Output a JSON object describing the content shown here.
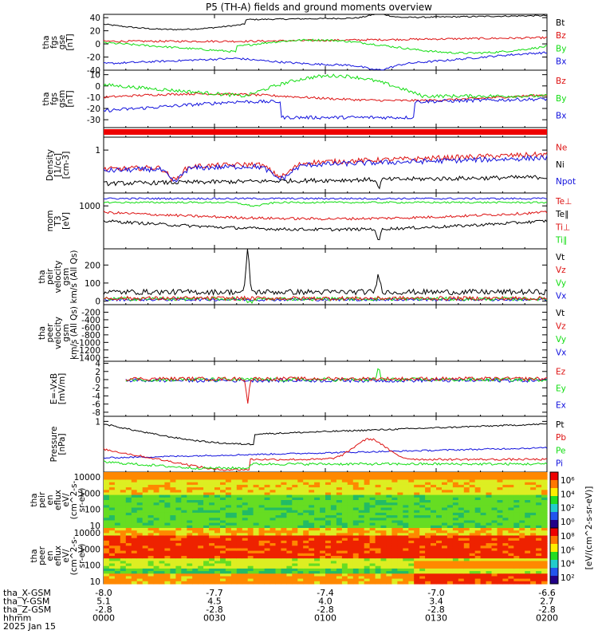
{
  "title": "P5 (TH-A) fields and ground moments overview",
  "colors": {
    "black": "#000000",
    "red": "#dd1111",
    "green": "#11dd11",
    "blue": "#1111dd"
  },
  "chart_data": {
    "type": "line",
    "x_range": [
      "0000",
      "0200"
    ],
    "panels": [
      {
        "id": "fgs-gse",
        "ylabel": [
          "tha",
          "fgs",
          "gse",
          "[nT]"
        ],
        "ylim": [
          -40,
          45
        ],
        "yticks": [
          "40",
          "20",
          "0",
          "-20",
          "-40"
        ],
        "ytick_values": [
          40,
          20,
          0,
          -20,
          -40
        ],
        "legend": [
          "Bt",
          "Bz",
          "By",
          "Bx"
        ],
        "legend_colors": [
          "black",
          "red",
          "green",
          "blue"
        ]
      },
      {
        "id": "fgs-gsm",
        "ylabel": [
          "tha",
          "fgs",
          "gsm",
          "[nT]"
        ],
        "ylim": [
          -37,
          14
        ],
        "yticks": [
          "10",
          "0",
          "-10",
          "-20",
          "-30"
        ],
        "ytick_values": [
          10,
          0,
          -10,
          -20,
          -30
        ],
        "legend": [
          "Bz",
          "By",
          "Bx"
        ],
        "legend_colors": [
          "red",
          "green",
          "blue"
        ]
      },
      {
        "id": "density",
        "ylabel": [
          "Density",
          "[1/cc]",
          "[cm-3]"
        ],
        "ylim": [
          0,
          1.3
        ],
        "yticks": [
          "1"
        ],
        "ytick_values": [
          1
        ],
        "legend": [
          "Ne",
          "Ni",
          "Npot"
        ],
        "legend_colors": [
          "red",
          "black",
          "blue"
        ]
      },
      {
        "id": "temperature",
        "ylabel": [
          "mom",
          "T3",
          "[eV]"
        ],
        "ylim": [
          0,
          1300
        ],
        "yticks": [
          "1000"
        ],
        "ytick_values": [
          1000
        ],
        "legend": [
          "Te⊥",
          "Te∥",
          "Ti⊥",
          "Ti∥"
        ],
        "legend_colors": [
          "red",
          "black",
          "red",
          "green"
        ]
      },
      {
        "id": "peir-velocity",
        "ylabel": [
          "tha",
          "peir",
          "velocity",
          "gsm",
          "km/s (All Qs)"
        ],
        "ylim": [
          -20,
          290
        ],
        "yticks": [
          "200",
          "100",
          "0"
        ],
        "ytick_values": [
          200,
          100,
          0
        ],
        "legend": [
          "Vt",
          "Vz",
          "Vy",
          "Vx"
        ],
        "legend_colors": [
          "black",
          "red",
          "green",
          "blue"
        ]
      },
      {
        "id": "peer-velocity",
        "ylabel": [
          "tha",
          "peer",
          "velocity",
          "gsm",
          "km/s (All Qs)"
        ],
        "ylim": [
          -1500,
          0
        ],
        "yticks": [
          "-200",
          "-400",
          "-600",
          "-800",
          "-1000",
          "-1200",
          "-1400"
        ],
        "ytick_values": [
          -200,
          -400,
          -600,
          -800,
          -1000,
          -1200,
          -1400
        ],
        "legend": [
          "Vt",
          "Vz",
          "Vy",
          "Vx"
        ],
        "legend_colors": [
          "black",
          "red",
          "green",
          "blue"
        ]
      },
      {
        "id": "efield",
        "ylabel": [
          "E=-VxB",
          "[mV/m]"
        ],
        "ylim": [
          -9,
          4.5
        ],
        "yticks": [
          "4",
          "2",
          "0",
          "-2",
          "-4",
          "-6",
          "-8"
        ],
        "ytick_values": [
          4,
          2,
          0,
          -2,
          -4,
          -6,
          -8
        ],
        "legend": [
          "Ez",
          "Ey",
          "Ex"
        ],
        "legend_colors": [
          "red",
          "green",
          "blue"
        ]
      },
      {
        "id": "pressure",
        "ylabel": [
          "Pressure",
          "[nPa]"
        ],
        "ylim": [
          0,
          1.1
        ],
        "yticks": [
          "1"
        ],
        "ytick_values": [
          1
        ],
        "legend": [
          "Pt",
          "Pb",
          "Pe",
          "Pi"
        ],
        "legend_colors": [
          "black",
          "red",
          "green",
          "blue"
        ]
      },
      {
        "id": "peir-eflux",
        "ylabel": [
          "tha",
          "peir",
          "en",
          "eflux",
          "eV/",
          "(cm^2-s-",
          "sr-eV)"
        ],
        "ylim": [
          7,
          20000
        ],
        "yticks": [
          "10000",
          "1000",
          "100",
          "10"
        ],
        "ytick_values": [
          10000,
          1000,
          100,
          10
        ],
        "colorbar_label": "[eV/(cm^2-s-sr-eV)]"
      },
      {
        "id": "peer-eflux",
        "ylabel": [
          "tha",
          "peer",
          "en",
          "eflux",
          "eV/",
          "(cm^2-s-",
          "sr-eV)"
        ],
        "ylim": [
          7,
          20000
        ],
        "yticks": [
          "10000",
          "1000",
          "100",
          "10"
        ],
        "ytick_values": [
          10000,
          1000,
          100,
          10
        ],
        "colorbar_label": "[eV/(cm^2-s-sr-eV)]"
      }
    ],
    "colorbar_ticks": [
      "10⁶",
      "10⁴",
      "10²",
      "10⁰",
      "10⁸",
      "10⁶",
      "10⁴",
      "10²"
    ],
    "colorbar_label": "[eV/(cm^2-s-sr-eV)]",
    "footer": {
      "labels": [
        "tha_X-GSM",
        "tha_Y-GSM",
        "tha_Z-GSM",
        "hhmm",
        "2025 Jan 15"
      ],
      "columns": [
        [
          "-8.0",
          "5.1",
          "-2.8",
          "0000"
        ],
        [
          "-7.7",
          "4.5",
          "-2.8",
          "0030"
        ],
        [
          "-7.4",
          "4.0",
          "-2.8",
          "0100"
        ],
        [
          "-7.0",
          "3.4",
          "-2.8",
          "0130"
        ],
        [
          "-6.6",
          "2.7",
          "-2.8",
          "0200"
        ]
      ]
    }
  }
}
